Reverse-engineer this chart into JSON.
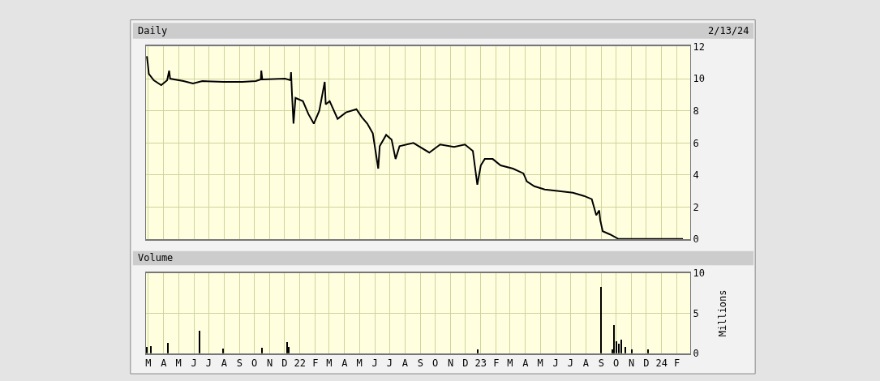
{
  "chart_data": [
    {
      "type": "line",
      "title": "Daily",
      "annotations": [
        "2/13/24"
      ],
      "color": "#000000",
      "grid": true,
      "tick_labels": "y",
      "xlim": [
        "2021-02-24",
        "2024-02-28"
      ],
      "ylim": [
        0,
        12
      ],
      "yticks": [
        0,
        2,
        4,
        6,
        8,
        10,
        12
      ],
      "xticks": [
        {
          "value": "2021-03-01",
          "label": null
        },
        {
          "value": "2021-04-01",
          "label": null
        },
        {
          "value": "2021-05-01",
          "label": null
        },
        {
          "value": "2021-06-01",
          "label": null
        },
        {
          "value": "2021-07-01",
          "label": null
        },
        {
          "value": "2021-08-01",
          "label": null
        },
        {
          "value": "2021-09-01",
          "label": null
        },
        {
          "value": "2021-10-01",
          "label": null
        },
        {
          "value": "2021-11-01",
          "label": null
        },
        {
          "value": "2021-12-01",
          "label": null
        },
        {
          "value": "2022-01-01",
          "label": null
        },
        {
          "value": "2022-02-01",
          "label": null
        },
        {
          "value": "2022-03-01",
          "label": null
        },
        {
          "value": "2022-04-01",
          "label": null
        },
        {
          "value": "2022-05-01",
          "label": null
        },
        {
          "value": "2022-06-01",
          "label": null
        },
        {
          "value": "2022-07-01",
          "label": null
        },
        {
          "value": "2022-08-01",
          "label": null
        },
        {
          "value": "2022-09-01",
          "label": null
        },
        {
          "value": "2022-10-01",
          "label": null
        },
        {
          "value": "2022-11-01",
          "label": null
        },
        {
          "value": "2022-12-01",
          "label": null
        },
        {
          "value": "2023-01-01",
          "label": null
        },
        {
          "value": "2023-02-01",
          "label": null
        },
        {
          "value": "2023-03-01",
          "label": null
        },
        {
          "value": "2023-04-01",
          "label": null
        },
        {
          "value": "2023-05-01",
          "label": null
        },
        {
          "value": "2023-06-01",
          "label": null
        },
        {
          "value": "2023-07-01",
          "label": null
        },
        {
          "value": "2023-08-01",
          "label": null
        },
        {
          "value": "2023-09-01",
          "label": null
        },
        {
          "value": "2023-10-01",
          "label": null
        },
        {
          "value": "2023-11-01",
          "label": null
        },
        {
          "value": "2023-12-01",
          "label": null
        },
        {
          "value": "2024-01-01",
          "label": null
        },
        {
          "value": "2024-02-01",
          "label": null
        }
      ],
      "x": [
        "2021-02-26",
        "2021-02-28",
        "2021-03-02",
        "2021-03-12",
        "2021-03-27",
        "2021-04-08",
        "2021-04-12",
        "2021-04-14",
        "2021-05-11",
        "2021-05-30",
        "2021-06-18",
        "2021-07-31",
        "2021-09-07",
        "2021-10-04",
        "2021-10-14",
        "2021-10-15",
        "2021-10-17",
        "2021-12-02",
        "2021-12-13",
        "2021-12-14",
        "2021-12-16",
        "2021-12-19",
        "2021-12-23",
        "2022-01-07",
        "2022-01-18",
        "2022-01-29",
        "2022-02-09",
        "2022-02-20",
        "2022-02-22",
        "2022-03-02",
        "2022-03-18",
        "2022-04-04",
        "2022-04-25",
        "2022-05-06",
        "2022-05-17",
        "2022-05-28",
        "2022-06-08",
        "2022-06-11",
        "2022-06-24",
        "2022-07-05",
        "2022-07-13",
        "2022-07-21",
        "2022-08-18",
        "2022-09-19",
        "2022-10-11",
        "2022-11-08",
        "2022-11-30",
        "2022-12-16",
        "2022-12-25",
        "2023-01-01",
        "2023-01-09",
        "2023-01-25",
        "2023-02-10",
        "2023-03-07",
        "2023-03-28",
        "2023-04-04",
        "2023-04-19",
        "2023-05-10",
        "2023-06-08",
        "2023-07-06",
        "2023-07-28",
        "2023-08-13",
        "2023-08-22",
        "2023-08-28",
        "2023-08-30",
        "2023-09-04",
        "2023-09-19",
        "2023-10-06",
        "2024-02-13"
      ],
      "values": [
        11.4,
        10.9,
        10.3,
        9.9,
        9.6,
        9.9,
        10.5,
        10.0,
        9.85,
        9.7,
        9.85,
        9.8,
        9.8,
        9.85,
        9.95,
        10.5,
        9.95,
        10.0,
        9.9,
        10.4,
        9.0,
        7.2,
        8.8,
        8.6,
        7.8,
        7.2,
        8.0,
        9.8,
        8.4,
        8.6,
        7.5,
        7.9,
        8.1,
        7.6,
        7.2,
        6.6,
        4.4,
        5.8,
        6.5,
        6.2,
        5.0,
        5.8,
        6.0,
        5.4,
        5.9,
        5.75,
        5.9,
        5.5,
        3.4,
        4.6,
        5.0,
        5.0,
        4.6,
        4.4,
        4.1,
        3.6,
        3.3,
        3.1,
        3.0,
        2.9,
        2.7,
        2.5,
        1.5,
        1.8,
        1.2,
        0.5,
        0.3,
        0.02,
        0.02
      ]
    },
    {
      "type": "bar",
      "title": "Volume",
      "ylabel": "Millions",
      "color": "#000000",
      "grid": true,
      "xlim": [
        "2021-02-24",
        "2024-02-28"
      ],
      "ylim": [
        0,
        10
      ],
      "yticks": [
        0,
        5,
        10
      ],
      "xticks": [
        {
          "value": "2021-03-01",
          "label": "M"
        },
        {
          "value": "2021-04-01",
          "label": "A"
        },
        {
          "value": "2021-05-01",
          "label": "M"
        },
        {
          "value": "2021-06-01",
          "label": "J"
        },
        {
          "value": "2021-07-01",
          "label": "J"
        },
        {
          "value": "2021-08-01",
          "label": "A"
        },
        {
          "value": "2021-09-01",
          "label": "S"
        },
        {
          "value": "2021-10-01",
          "label": "O"
        },
        {
          "value": "2021-11-01",
          "label": "N"
        },
        {
          "value": "2021-12-01",
          "label": "D"
        },
        {
          "value": "2022-01-01",
          "label": "22"
        },
        {
          "value": "2022-02-01",
          "label": "F"
        },
        {
          "value": "2022-03-01",
          "label": "M"
        },
        {
          "value": "2022-04-01",
          "label": "A"
        },
        {
          "value": "2022-05-01",
          "label": "M"
        },
        {
          "value": "2022-06-01",
          "label": "J"
        },
        {
          "value": "2022-07-01",
          "label": "J"
        },
        {
          "value": "2022-08-01",
          "label": "A"
        },
        {
          "value": "2022-09-01",
          "label": "S"
        },
        {
          "value": "2022-10-01",
          "label": "O"
        },
        {
          "value": "2022-11-01",
          "label": "N"
        },
        {
          "value": "2022-12-01",
          "label": "D"
        },
        {
          "value": "2023-01-01",
          "label": "23"
        },
        {
          "value": "2023-02-01",
          "label": "F"
        },
        {
          "value": "2023-03-01",
          "label": "M"
        },
        {
          "value": "2023-04-01",
          "label": "A"
        },
        {
          "value": "2023-05-01",
          "label": "M"
        },
        {
          "value": "2023-06-01",
          "label": "J"
        },
        {
          "value": "2023-07-01",
          "label": "J"
        },
        {
          "value": "2023-08-01",
          "label": "A"
        },
        {
          "value": "2023-09-01",
          "label": "S"
        },
        {
          "value": "2023-10-01",
          "label": "O"
        },
        {
          "value": "2023-11-01",
          "label": "N"
        },
        {
          "value": "2023-12-01",
          "label": "D"
        },
        {
          "value": "2024-01-01",
          "label": "24"
        },
        {
          "value": "2024-02-01",
          "label": "F"
        }
      ],
      "x": [
        "2021-02-26",
        "2021-03-06",
        "2021-04-10",
        "2021-06-12",
        "2021-07-30",
        "2021-10-16",
        "2021-12-06",
        "2021-12-10",
        "2022-12-25",
        "2023-08-31",
        "2023-09-23",
        "2023-09-27",
        "2023-10-01",
        "2023-10-06",
        "2023-10-12",
        "2023-10-19",
        "2023-11-01",
        "2023-12-04"
      ],
      "values": [
        0.8,
        0.9,
        1.3,
        2.8,
        0.6,
        0.7,
        1.4,
        0.8,
        0.5,
        8.3,
        0.5,
        3.5,
        1.5,
        1.2,
        1.7,
        0.8,
        0.5,
        0.5
      ]
    }
  ]
}
